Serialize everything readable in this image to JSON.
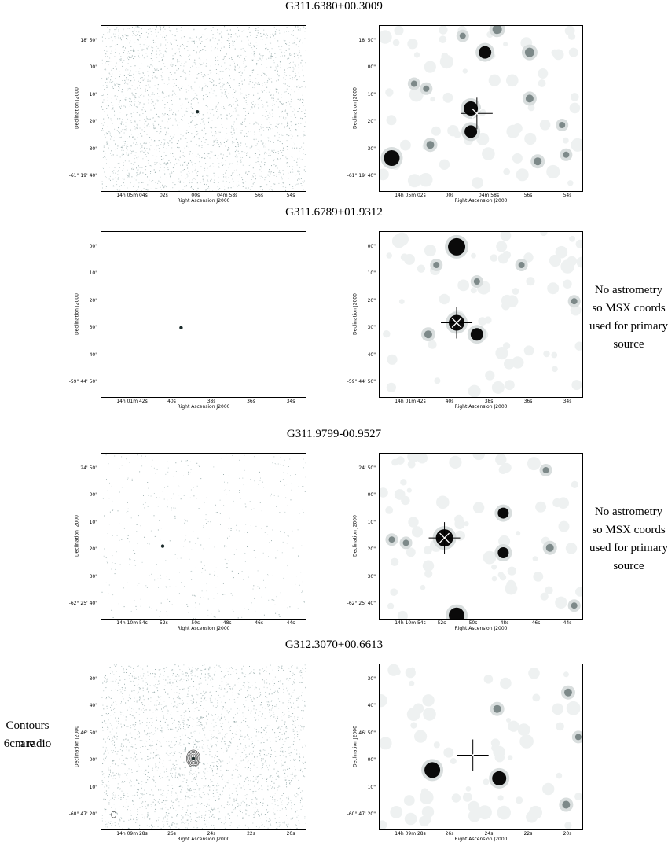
{
  "blocks": [
    {
      "title": "G311.6380+00.3009",
      "note": [],
      "yticks": [
        "18' 50\"",
        "00\"",
        "10\"",
        "20\"",
        "30\"",
        "-61° 19' 40\""
      ],
      "left_xticks": [
        "14h 05m 04s",
        "02s",
        "00s",
        "04m 58s",
        "56s",
        "54s"
      ],
      "right_xticks": [
        "14h 05m 02s",
        "00s",
        "04m 58s",
        "56s",
        "54s"
      ],
      "xlabel": "Right Ascension J2000",
      "ylabel": "Declination J2000",
      "left_style": "noise",
      "right_stars": [
        [
          0.06,
          0.8,
          10
        ],
        [
          0.23,
          0.38,
          4
        ],
        [
          0.25,
          0.72,
          5
        ],
        [
          0.41,
          0.06,
          4
        ],
        [
          0.45,
          0.5,
          9
        ],
        [
          0.45,
          0.64,
          8
        ],
        [
          0.52,
          0.16,
          8
        ],
        [
          0.58,
          0.02,
          6
        ],
        [
          0.74,
          0.16,
          6
        ],
        [
          0.74,
          0.44,
          5
        ],
        [
          0.78,
          0.82,
          5
        ],
        [
          0.92,
          0.78,
          4
        ],
        [
          0.9,
          0.6,
          4
        ],
        [
          0.17,
          0.35,
          4
        ]
      ],
      "cross": [
        0.48,
        0.53
      ]
    },
    {
      "title": "G311.6789+01.9312",
      "note": [
        "No astrometry",
        "so MSX coords",
        "used for primary",
        "source"
      ],
      "yticks": [
        "00\"",
        "10\"",
        "20\"",
        "30\"",
        "40\"",
        "-59° 44' 50\""
      ],
      "left_xticks": [
        "14h 01m 42s",
        "40s",
        "38s",
        "36s",
        "34s"
      ],
      "right_xticks": [
        "14h 01m 42s",
        "40s",
        "38s",
        "36s",
        "34s"
      ],
      "xlabel": "Right Ascension J2000",
      "ylabel": "Declination J2000",
      "left_style": "blank",
      "right_stars": [
        [
          0.38,
          0.09,
          11
        ],
        [
          0.38,
          0.55,
          10
        ],
        [
          0.48,
          0.62,
          8
        ],
        [
          0.48,
          0.3,
          4
        ],
        [
          0.28,
          0.2,
          4
        ],
        [
          0.7,
          0.2,
          4
        ],
        [
          0.96,
          0.42,
          4
        ],
        [
          0.24,
          0.62,
          5
        ]
      ],
      "cross": [
        0.38,
        0.55
      ]
    },
    {
      "title": "G311.9799-00.9527",
      "note": [
        "No astrometry",
        "so MSX coords",
        "used for primary",
        "source"
      ],
      "yticks": [
        "24' 50\"",
        "00\"",
        "10\"",
        "20\"",
        "30\"",
        "-62° 25' 40\""
      ],
      "left_xticks": [
        "14h 10m 54s",
        "52s",
        "50s",
        "48s",
        "46s",
        "44s"
      ],
      "right_xticks": [
        "14h 10m 54s",
        "52s",
        "50s",
        "48s",
        "46s",
        "44s"
      ],
      "xlabel": "Right Ascension J2000",
      "ylabel": "Declination J2000",
      "left_style": "faint",
      "right_stars": [
        [
          0.32,
          0.51,
          11
        ],
        [
          0.61,
          0.36,
          7
        ],
        [
          0.61,
          0.6,
          7
        ],
        [
          0.38,
          0.98,
          10
        ],
        [
          0.84,
          0.57,
          5
        ],
        [
          0.13,
          0.54,
          4
        ],
        [
          0.06,
          0.52,
          4
        ],
        [
          0.82,
          0.1,
          4
        ],
        [
          0.96,
          0.92,
          4
        ]
      ],
      "cross": [
        0.32,
        0.51
      ]
    },
    {
      "title": "G312.3070+00.6613",
      "note": [
        "Contours are",
        "6cm radio"
      ],
      "yticks": [
        "30\"",
        "40\"",
        "46' 50\"",
        "00\"",
        "10\"",
        "-60° 47' 20\""
      ],
      "left_xticks": [
        "14h 09m 28s",
        "26s",
        "24s",
        "22s",
        "20s"
      ],
      "right_xticks": [
        "14h 09m 28s",
        "26s",
        "24s",
        "22s",
        "20s"
      ],
      "xlabel": "Right Ascension J2000",
      "ylabel": "Declination J2000",
      "left_style": "noise",
      "right_stars": [
        [
          0.26,
          0.64,
          10
        ],
        [
          0.59,
          0.69,
          9
        ],
        [
          0.58,
          0.27,
          5
        ],
        [
          0.93,
          0.17,
          5
        ],
        [
          0.92,
          0.85,
          5
        ],
        [
          0.98,
          0.44,
          4
        ]
      ],
      "cross": [
        0.46,
        0.55
      ]
    }
  ]
}
